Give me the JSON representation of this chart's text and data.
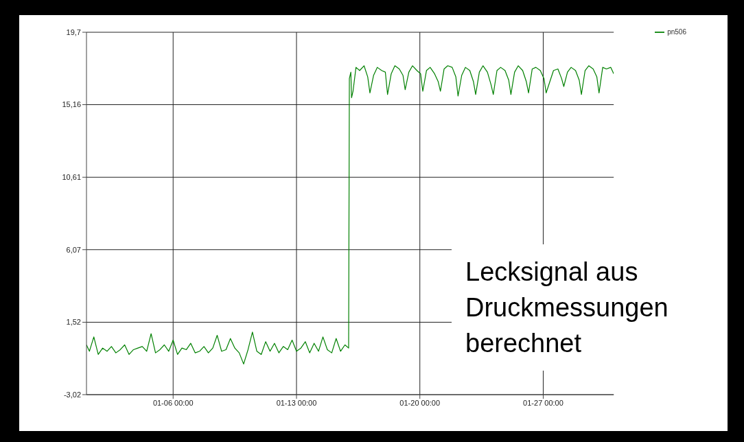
{
  "chart_data": {
    "type": "line",
    "ylim": [
      -3.02,
      19.7
    ],
    "yticks": [
      {
        "value": -3.02,
        "label": "-3,02"
      },
      {
        "value": 1.52,
        "label": "1,52"
      },
      {
        "value": 6.07,
        "label": "6,07"
      },
      {
        "value": 10.61,
        "label": "10,61"
      },
      {
        "value": 15.16,
        "label": "15,16"
      },
      {
        "value": 19.7,
        "label": "19,7"
      }
    ],
    "xlim": [
      "--01-01T02:00",
      "--01-31T00:00"
    ],
    "xticks": [
      {
        "value": "--01-06T00:00",
        "label": "01-06 00:00"
      },
      {
        "value": "--01-13T00:00",
        "label": "01-13 00:00"
      },
      {
        "value": "--01-20T00:00",
        "label": "01-20 00:00"
      },
      {
        "value": "--01-27T00:00",
        "label": "01-27 00:00"
      }
    ],
    "grid": true,
    "legend": "top right",
    "marker": "none",
    "line_style": "solid",
    "annotations": [
      "Lecksignal aus Druckmessungen berechnet"
    ],
    "series": [
      {
        "name": "pn506",
        "color": "#008000",
        "x": [
          "--01-01T02:00",
          "--01-01T06:00",
          "--01-01T12:00",
          "--01-01T18:00",
          "--01-02T00:00",
          "--01-02T06:00",
          "--01-02T12:00",
          "--01-02T18:00",
          "--01-03T00:00",
          "--01-03T06:00",
          "--01-03T12:00",
          "--01-03T18:00",
          "--01-04T00:00",
          "--01-04T06:00",
          "--01-04T12:00",
          "--01-04T18:00",
          "--01-05T00:00",
          "--01-05T06:00",
          "--01-05T12:00",
          "--01-05T18:00",
          "--01-06T00:00",
          "--01-06T06:00",
          "--01-06T12:00",
          "--01-06T18:00",
          "--01-07T00:00",
          "--01-07T06:00",
          "--01-07T12:00",
          "--01-07T18:00",
          "--01-08T00:00",
          "--01-08T06:00",
          "--01-08T12:00",
          "--01-08T18:00",
          "--01-09T00:00",
          "--01-09T06:00",
          "--01-09T12:00",
          "--01-09T18:00",
          "--01-10T00:00",
          "--01-10T06:00",
          "--01-10T12:00",
          "--01-10T18:00",
          "--01-11T00:00",
          "--01-11T06:00",
          "--01-11T12:00",
          "--01-11T18:00",
          "--01-12T00:00",
          "--01-12T06:00",
          "--01-12T12:00",
          "--01-12T18:00",
          "--01-13T00:00",
          "--01-13T06:00",
          "--01-13T12:00",
          "--01-13T18:00",
          "--01-14T00:00",
          "--01-14T06:00",
          "--01-14T12:00",
          "--01-14T18:00",
          "--01-15T00:00",
          "--01-15T06:00",
          "--01-15T12:00",
          "--01-15T18:00",
          "--01-15T23:00",
          "--01-16T00:00",
          "--01-16T02:00",
          "--01-16T03:00",
          "--01-16T05:00",
          "--01-16T09:00",
          "--01-16T14:00",
          "--01-16T20:00",
          "--01-17T01:00",
          "--01-17T04:00",
          "--01-17T09:00",
          "--01-17T14:00",
          "--01-17T20:00",
          "--01-18T01:00",
          "--01-18T04:00",
          "--01-18T09:00",
          "--01-18T14:00",
          "--01-18T20:00",
          "--01-19T01:00",
          "--01-19T04:00",
          "--01-19T09:00",
          "--01-19T14:00",
          "--01-19T20:00",
          "--01-20T01:00",
          "--01-20T04:00",
          "--01-20T09:00",
          "--01-20T14:00",
          "--01-20T20:00",
          "--01-21T01:00",
          "--01-21T04:00",
          "--01-21T09:00",
          "--01-21T14:00",
          "--01-21T20:00",
          "--01-22T01:00",
          "--01-22T04:00",
          "--01-22T09:00",
          "--01-22T14:00",
          "--01-22T20:00",
          "--01-23T01:00",
          "--01-23T04:00",
          "--01-23T09:00",
          "--01-23T14:00",
          "--01-23T20:00",
          "--01-24T01:00",
          "--01-24T04:00",
          "--01-24T09:00",
          "--01-24T14:00",
          "--01-24T20:00",
          "--01-25T01:00",
          "--01-25T04:00",
          "--01-25T09:00",
          "--01-25T14:00",
          "--01-25T20:00",
          "--01-26T01:00",
          "--01-26T04:00",
          "--01-26T09:00",
          "--01-26T14:00",
          "--01-26T20:00",
          "--01-27T01:00",
          "--01-27T04:00",
          "--01-27T09:00",
          "--01-27T14:00",
          "--01-27T20:00",
          "--01-28T01:00",
          "--01-28T04:00",
          "--01-28T09:00",
          "--01-28T14:00",
          "--01-28T20:00",
          "--01-29T01:00",
          "--01-29T04:00",
          "--01-29T09:00",
          "--01-29T14:00",
          "--01-29T20:00",
          "--01-30T01:00",
          "--01-30T04:00",
          "--01-30T09:00",
          "--01-30T14:00",
          "--01-30T20:00",
          "--01-31T00:00"
        ],
        "values": [
          0.1,
          -0.3,
          0.6,
          -0.5,
          -0.1,
          -0.3,
          0.0,
          -0.4,
          -0.2,
          0.1,
          -0.5,
          -0.2,
          -0.1,
          0.0,
          -0.3,
          0.8,
          -0.4,
          -0.2,
          0.1,
          -0.3,
          0.4,
          -0.5,
          -0.1,
          -0.2,
          0.2,
          -0.4,
          -0.3,
          0.0,
          -0.4,
          -0.1,
          0.7,
          -0.3,
          -0.2,
          0.5,
          -0.1,
          -0.4,
          -1.1,
          -0.2,
          0.9,
          -0.3,
          -0.5,
          0.3,
          -0.3,
          0.2,
          -0.4,
          0.0,
          -0.2,
          0.4,
          -0.3,
          -0.1,
          0.3,
          -0.4,
          0.2,
          -0.3,
          0.6,
          -0.2,
          -0.4,
          0.5,
          -0.3,
          0.1,
          -0.1,
          16.8,
          17.2,
          15.6,
          16.0,
          17.5,
          17.3,
          17.6,
          16.9,
          15.9,
          17.0,
          17.5,
          17.3,
          17.2,
          15.8,
          17.1,
          17.6,
          17.4,
          17.0,
          16.1,
          17.2,
          17.6,
          17.3,
          17.1,
          16.0,
          17.3,
          17.5,
          17.1,
          16.6,
          16.0,
          17.4,
          17.6,
          17.5,
          16.9,
          15.7,
          17.0,
          17.5,
          17.3,
          16.6,
          15.8,
          17.2,
          17.6,
          17.2,
          16.4,
          15.8,
          17.3,
          17.5,
          17.3,
          16.7,
          15.8,
          17.2,
          17.6,
          17.3,
          16.6,
          15.9,
          17.4,
          17.5,
          17.3,
          16.8,
          15.9,
          16.6,
          17.3,
          17.4,
          16.8,
          16.3,
          17.2,
          17.5,
          17.3,
          16.7,
          15.8,
          17.3,
          17.6,
          17.4,
          16.9,
          15.9,
          17.5,
          17.4,
          17.5,
          17.1
        ]
      }
    ]
  }
}
